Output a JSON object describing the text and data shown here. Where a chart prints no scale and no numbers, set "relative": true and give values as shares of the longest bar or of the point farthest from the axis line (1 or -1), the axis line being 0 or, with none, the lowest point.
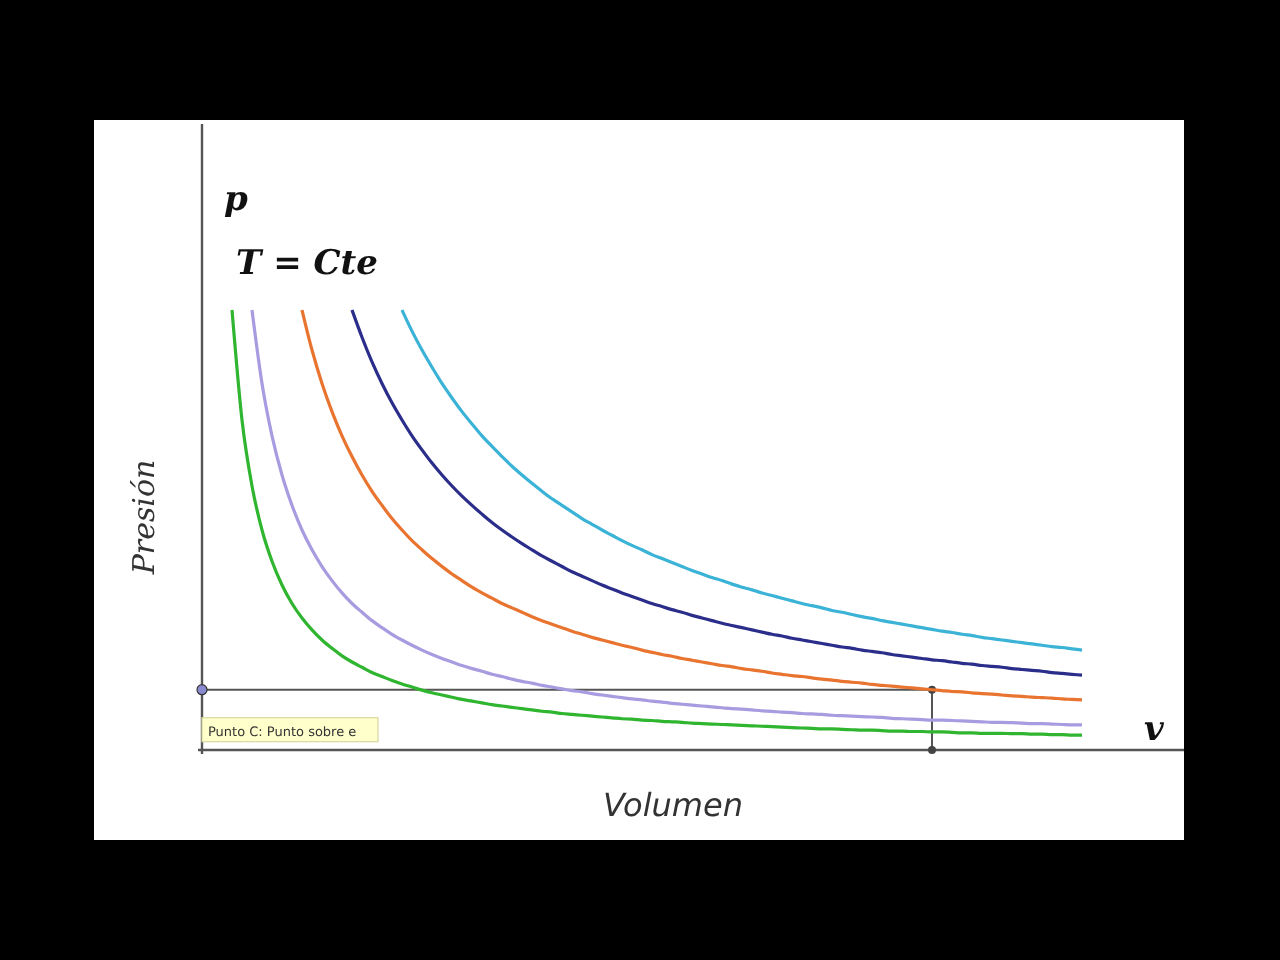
{
  "chart_data": {
    "type": "line",
    "relative": true,
    "xlabel": "Volumen",
    "ylabel": "Presión",
    "annotations": [
      "p",
      "T = Cte",
      "v",
      {
        "text": "Punto C: Punto sobre e",
        "y": 0.137
      }
    ],
    "ref_lines": [
      {
        "axis": "y",
        "value": 0.137
      }
    ],
    "categories": [
      null,
      null,
      null,
      null,
      null,
      null,
      null,
      null,
      null,
      null,
      null,
      null,
      null,
      null,
      null,
      null,
      null,
      null,
      null,
      null,
      null,
      null,
      null,
      null,
      null,
      null,
      null,
      null,
      null,
      null,
      null,
      null,
      null,
      null,
      null,
      null,
      null,
      null,
      null,
      null,
      null,
      null,
      null,
      null,
      null,
      null,
      null,
      null,
      null,
      null,
      null,
      null,
      null,
      null,
      null,
      null,
      null,
      null,
      null,
      null,
      null,
      null,
      null,
      null,
      null,
      null,
      null,
      null,
      null,
      null,
      null,
      null,
      null,
      null,
      null,
      null,
      null,
      null,
      null,
      null,
      null,
      null,
      null,
      null,
      null,
      null,
      null,
      null,
      null,
      null,
      null,
      null,
      null,
      null,
      null,
      null,
      null,
      null,
      null
    ],
    "series": [
      {
        "color": "#2fb52f",
        "values": [
          null,
          null,
          null,
          1,
          0.75,
          0.6,
          0.5,
          0.429,
          0.375,
          0.333,
          0.3,
          0.273,
          0.25,
          0.231,
          0.214,
          0.2,
          0.188,
          0.176,
          0.167,
          0.158,
          0.15,
          0.143,
          0.136,
          0.13,
          0.125,
          0.12,
          0.115,
          0.111,
          0.107,
          0.103,
          0.1,
          0.097,
          0.094,
          0.091,
          0.088,
          0.086,
          0.083,
          0.081,
          0.079,
          0.077,
          0.075,
          0.073,
          0.071,
          0.07,
          0.068,
          0.067,
          0.065,
          0.064,
          0.063,
          0.061,
          0.06,
          0.059,
          0.058,
          0.057,
          0.056,
          0.055,
          0.054,
          0.053,
          0.052,
          0.051,
          0.05,
          0.049,
          0.048,
          0.048,
          0.047,
          0.046,
          0.045,
          0.045,
          0.044,
          0.043,
          0.043,
          0.042,
          0.042,
          0.041,
          0.041,
          0.04,
          0.039,
          0.039,
          0.038,
          0.038,
          0.038,
          0.037,
          0.037,
          0.036,
          0.036,
          0.035,
          0.035,
          0.034,
          0.034,
          null,
          null,
          null,
          null,
          null,
          null,
          null,
          null,
          null,
          null
        ]
      },
      {
        "color": "#a99be0",
        "values": [
          null,
          null,
          null,
          null,
          null,
          1,
          0.833,
          0.714,
          0.625,
          0.556,
          0.5,
          0.455,
          0.417,
          0.385,
          0.357,
          0.333,
          0.313,
          0.294,
          0.278,
          0.263,
          0.25,
          0.238,
          0.227,
          0.217,
          0.208,
          0.2,
          0.192,
          0.185,
          0.179,
          0.172,
          0.167,
          0.161,
          0.156,
          0.152,
          0.147,
          0.143,
          0.139,
          0.135,
          0.132,
          0.128,
          0.125,
          0.122,
          0.119,
          0.116,
          0.114,
          0.111,
          0.109,
          0.106,
          0.104,
          0.102,
          0.1,
          0.098,
          0.096,
          0.094,
          0.093,
          0.091,
          0.089,
          0.088,
          0.086,
          0.085,
          0.083,
          0.082,
          0.081,
          0.079,
          0.078,
          0.077,
          0.076,
          0.075,
          0.074,
          0.072,
          0.071,
          0.07,
          0.069,
          0.068,
          0.068,
          0.067,
          0.066,
          0.065,
          0.064,
          0.063,
          0.063,
          0.062,
          0.061,
          0.06,
          0.06,
          0.059,
          0.058,
          0.057,
          0.057,
          null,
          null,
          null,
          null,
          null,
          null,
          null,
          null,
          null,
          null
        ]
      },
      {
        "color": "#e8742f",
        "values": [
          null,
          null,
          null,
          null,
          null,
          null,
          null,
          null,
          null,
          null,
          1,
          0.909,
          0.833,
          0.769,
          0.714,
          0.667,
          0.625,
          0.588,
          0.556,
          0.526,
          0.5,
          0.476,
          0.455,
          0.435,
          0.417,
          0.4,
          0.385,
          0.37,
          0.357,
          0.345,
          0.333,
          0.323,
          0.313,
          0.303,
          0.294,
          0.286,
          0.278,
          0.27,
          0.263,
          0.256,
          0.25,
          0.244,
          0.238,
          0.233,
          0.227,
          0.222,
          0.217,
          0.213,
          0.208,
          0.204,
          0.2,
          0.196,
          0.192,
          0.189,
          0.185,
          0.182,
          0.179,
          0.175,
          0.172,
          0.169,
          0.167,
          0.164,
          0.161,
          0.159,
          0.156,
          0.154,
          0.152,
          0.149,
          0.147,
          0.145,
          0.143,
          0.141,
          0.139,
          0.137,
          0.135,
          0.133,
          0.132,
          0.13,
          0.128,
          0.127,
          0.125,
          0.123,
          0.122,
          0.12,
          0.119,
          0.118,
          0.116,
          0.115,
          0.114,
          null,
          null,
          null,
          null,
          null,
          null,
          null,
          null,
          null,
          null
        ]
      },
      {
        "color": "#2b2d8a",
        "values": [
          null,
          null,
          null,
          null,
          null,
          null,
          null,
          null,
          null,
          null,
          null,
          null,
          null,
          null,
          null,
          1,
          0.938,
          0.882,
          0.833,
          0.789,
          0.75,
          0.714,
          0.682,
          0.652,
          0.625,
          0.6,
          0.577,
          0.556,
          0.536,
          0.517,
          0.5,
          0.484,
          0.469,
          0.455,
          0.441,
          0.429,
          0.417,
          0.405,
          0.395,
          0.385,
          0.375,
          0.366,
          0.357,
          0.349,
          0.341,
          0.333,
          0.326,
          0.319,
          0.313,
          0.306,
          0.3,
          0.294,
          0.288,
          0.283,
          0.278,
          0.273,
          0.268,
          0.263,
          0.259,
          0.254,
          0.25,
          0.246,
          0.242,
          0.238,
          0.234,
          0.231,
          0.227,
          0.224,
          0.221,
          0.217,
          0.214,
          0.211,
          0.208,
          0.205,
          0.203,
          0.2,
          0.197,
          0.195,
          0.192,
          0.19,
          0.188,
          0.185,
          0.183,
          0.181,
          0.179,
          0.176,
          0.174,
          0.172,
          0.17,
          null,
          null,
          null,
          null,
          null,
          null,
          null,
          null,
          null,
          null
        ]
      },
      {
        "color": "#3bb3d6",
        "values": [
          null,
          null,
          null,
          null,
          null,
          null,
          null,
          null,
          null,
          null,
          null,
          null,
          null,
          null,
          null,
          null,
          null,
          null,
          null,
          null,
          1,
          0.952,
          0.909,
          0.87,
          0.833,
          0.8,
          0.769,
          0.741,
          0.714,
          0.69,
          0.667,
          0.645,
          0.625,
          0.606,
          0.588,
          0.571,
          0.556,
          0.541,
          0.526,
          0.513,
          0.5,
          0.488,
          0.476,
          0.465,
          0.455,
          0.444,
          0.435,
          0.426,
          0.417,
          0.408,
          0.4,
          0.392,
          0.385,
          0.377,
          0.37,
          0.364,
          0.357,
          0.351,
          0.345,
          0.339,
          0.333,
          0.328,
          0.323,
          0.317,
          0.313,
          0.308,
          0.303,
          0.299,
          0.294,
          0.29,
          0.286,
          0.282,
          0.278,
          0.274,
          0.27,
          0.267,
          0.263,
          0.26,
          0.256,
          0.253,
          0.25,
          0.247,
          0.244,
          0.241,
          0.238,
          0.235,
          0.233,
          0.23,
          0.227,
          null,
          null,
          null,
          null,
          null,
          null,
          null,
          null,
          null,
          null
        ]
      }
    ]
  }
}
